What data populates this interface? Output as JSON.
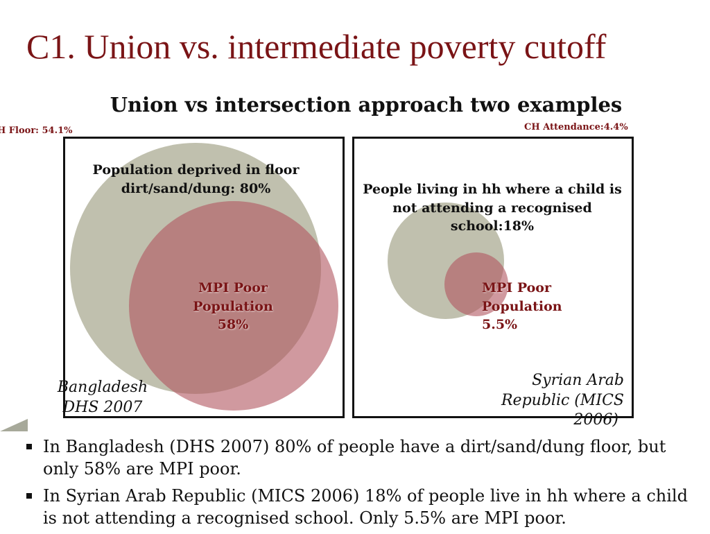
{
  "slide": {
    "title": "C1. Union vs. intermediate poverty cutoff",
    "subtitle": "Union vs intersection approach two examples"
  },
  "left_panel": {
    "corner_label": "H Floor: 54.1%",
    "outer_label": "Population deprived in floor dirt/sand/dung: 80%",
    "inner_label_line1": "MPI Poor",
    "inner_label_line2": "Population",
    "inner_label_line3": "58%",
    "country_line1": "Bangladesh",
    "country_line2": "DHS 2007"
  },
  "right_panel": {
    "corner_label": "CH Attendance:4.4%",
    "outer_label": "People living in hh where a child is not attending a recognised school:18%",
    "inner_label_line1": "MPI Poor",
    "inner_label_line2": "Population",
    "inner_label_line3": "5.5%",
    "country_line1": "Syrian Arab",
    "country_line2": "Republic (MICS",
    "country_line3": "2006)"
  },
  "bullets": [
    "In Bangladesh (DHS 2007) 80% of people have a dirt/sand/dung floor, but only 58% are MPI poor.",
    "In Syrian Arab Republic (MICS 2006) 18% of people live in hh where a child is not attending a recognised school. Only 5.5% are MPI poor."
  ],
  "colors": {
    "title": "#7a1416",
    "deprived_circle": "#b5b5a0",
    "mpi_circle": "#b0555f"
  }
}
